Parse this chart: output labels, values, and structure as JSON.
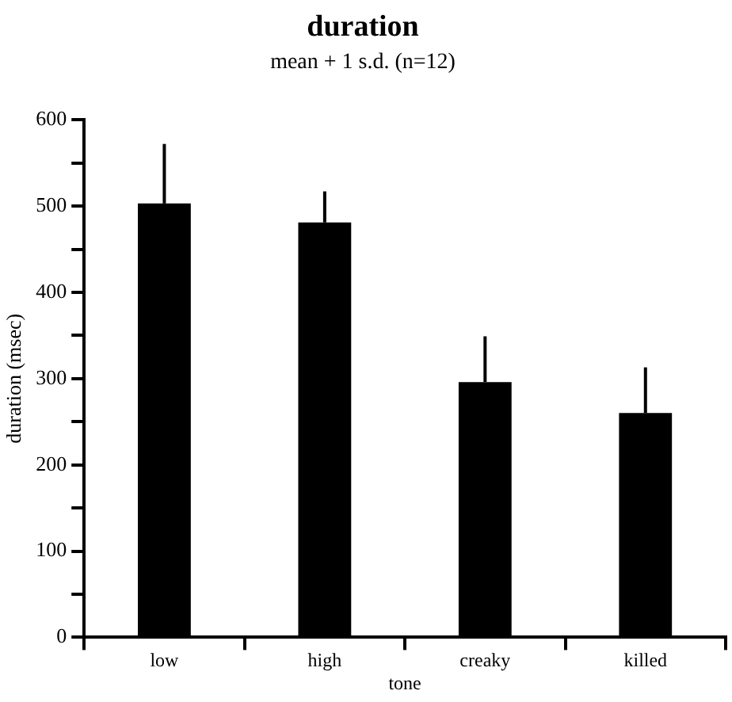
{
  "chart_data": {
    "type": "bar",
    "title": "duration",
    "subtitle": "mean + 1 s.d. (n=12)",
    "xlabel": "tone",
    "ylabel": "duration (msec)",
    "categories": [
      "low",
      "high",
      "creaky",
      "killed"
    ],
    "values": [
      503,
      481,
      296,
      260
    ],
    "errors": [
      [
        503,
        572
      ],
      [
        481,
        517
      ],
      [
        296,
        349
      ],
      [
        260,
        313
      ]
    ],
    "color": "#000000",
    "ylim": [
      0,
      600
    ],
    "yticks": [
      0,
      {
        "value": 50,
        "label": null
      },
      100,
      {
        "value": 150,
        "label": null
      },
      200,
      {
        "value": 250,
        "label": null
      },
      300,
      {
        "value": 350,
        "label": null
      },
      400,
      {
        "value": 450,
        "label": null
      },
      500,
      {
        "value": 550,
        "label": null
      },
      600
    ],
    "grid": false,
    "legend": false
  }
}
